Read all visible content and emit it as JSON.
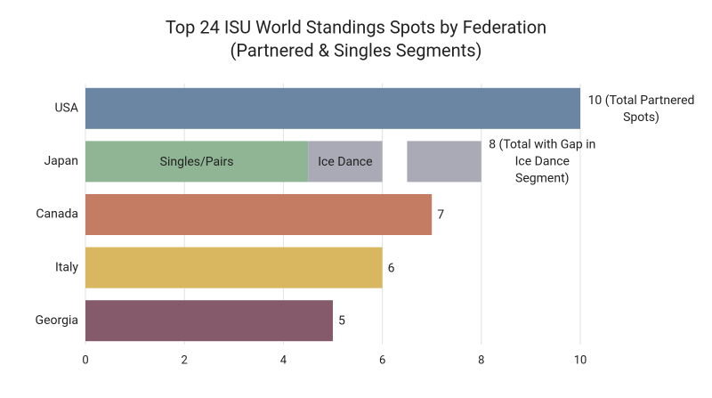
{
  "chart_data": {
    "type": "bar",
    "orientation": "horizontal",
    "title": "Top 24 ISU World Standings Spots by Federation",
    "subtitle": "(Partnered & Singles Segments)",
    "categories": [
      "USA",
      "Japan",
      "Canada",
      "Italy",
      "Georgia"
    ],
    "values": [
      10,
      8,
      7,
      6,
      5
    ],
    "value_labels": [
      "10 (Total Partnered Spots)",
      "8 (Total with Gap in Ice Dance Segment)",
      "7",
      "6",
      "5"
    ],
    "colors": [
      "#6a86a3",
      null,
      "#c47c63",
      "#d9b660",
      "#855a6b"
    ],
    "segments": {
      "category": 1,
      "parts": [
        {
          "name": "Singles/Pairs",
          "value": 4.5,
          "color": "#8fb595"
        },
        {
          "name": "Ice Dance",
          "value": 1.5,
          "color": "#a9aab6"
        },
        {
          "value": 0.5,
          "gap": true
        },
        {
          "value": 1.5,
          "color": "#a9aab6"
        }
      ]
    },
    "xlim": [
      0,
      10
    ],
    "xticks": [
      0,
      2,
      4,
      6,
      8,
      10
    ],
    "grid": true
  }
}
